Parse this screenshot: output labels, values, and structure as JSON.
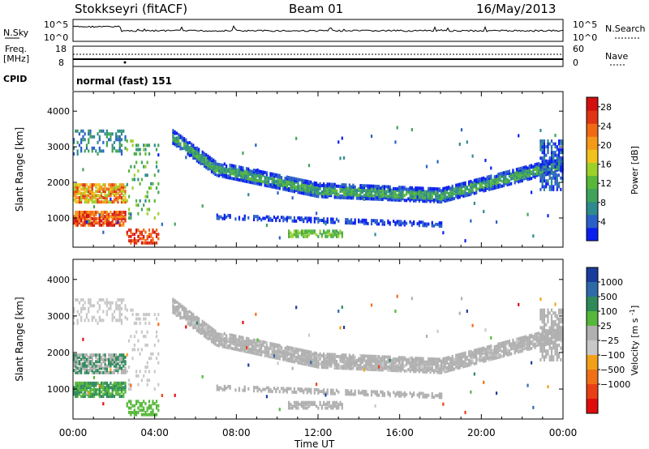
{
  "header": {
    "station": "Stokkseyri (fitACF)",
    "beam": "Beam 01",
    "date": "16/May/2013"
  },
  "summary": {
    "nsky_label": "N.Sky",
    "nsky_ticks": [
      "10^5",
      "10^0"
    ],
    "nsearch_label": "N.Search",
    "freq_label": "Freq.",
    "freq_unit": "[MHz]",
    "freq_ticks": [
      "18",
      "8"
    ],
    "nave_ticks": [
      "60",
      "0"
    ],
    "nave_label": "Nave",
    "cpid_label": "CPID",
    "cpid_value": "normal (fast) 151"
  },
  "chart_data": [
    {
      "type": "heatmap",
      "title": "",
      "xlabel": "Time UT",
      "ylabel": "Slant Range [km]",
      "x_ticks": [
        "00:00",
        "04:00",
        "08:00",
        "12:00",
        "16:00",
        "20:00",
        "00:00"
      ],
      "y_ticks": [
        "1000",
        "2000",
        "3000",
        "4000"
      ],
      "xlim_hours": [
        0,
        24
      ],
      "ylim_km": [
        180,
        4550
      ],
      "colorbar": {
        "label": "Power [dB]",
        "ticks": [
          "4",
          "8",
          "12",
          "16",
          "20",
          "24",
          "28"
        ],
        "range": [
          0,
          30
        ],
        "colors": [
          "#0a1ef0",
          "#2a5fc8",
          "#2e8a8c",
          "#3fa35a",
          "#58b83a",
          "#9ed02a",
          "#f2c21c",
          "#f59a18",
          "#f06a14",
          "#e03414",
          "#d40f0f"
        ]
      },
      "grid": false
    },
    {
      "type": "heatmap",
      "title": "",
      "xlabel": "Time UT",
      "ylabel": "Slant Range [km]",
      "x_ticks": [
        "00:00",
        "04:00",
        "08:00",
        "12:00",
        "16:00",
        "20:00",
        "00:00"
      ],
      "y_ticks": [
        "1000",
        "2000",
        "3000",
        "4000"
      ],
      "xlim_hours": [
        0,
        24
      ],
      "ylim_km": [
        180,
        4550
      ],
      "colorbar": {
        "label": "Velocity",
        "unit": "[m s",
        "unit_sup": "-1",
        "unit_end": "]",
        "ticks": [
          "1000",
          "500",
          "100",
          "25",
          "−25",
          "−100",
          "−500",
          "−1000"
        ],
        "colors": [
          "#1a3c9c",
          "#2f6aa8",
          "#2e8a5a",
          "#56b83a",
          "#b0b0b0",
          "#c8c8c8",
          "#f2a018",
          "#f07018",
          "#e84014",
          "#e00c0c"
        ]
      },
      "grid": false
    }
  ]
}
